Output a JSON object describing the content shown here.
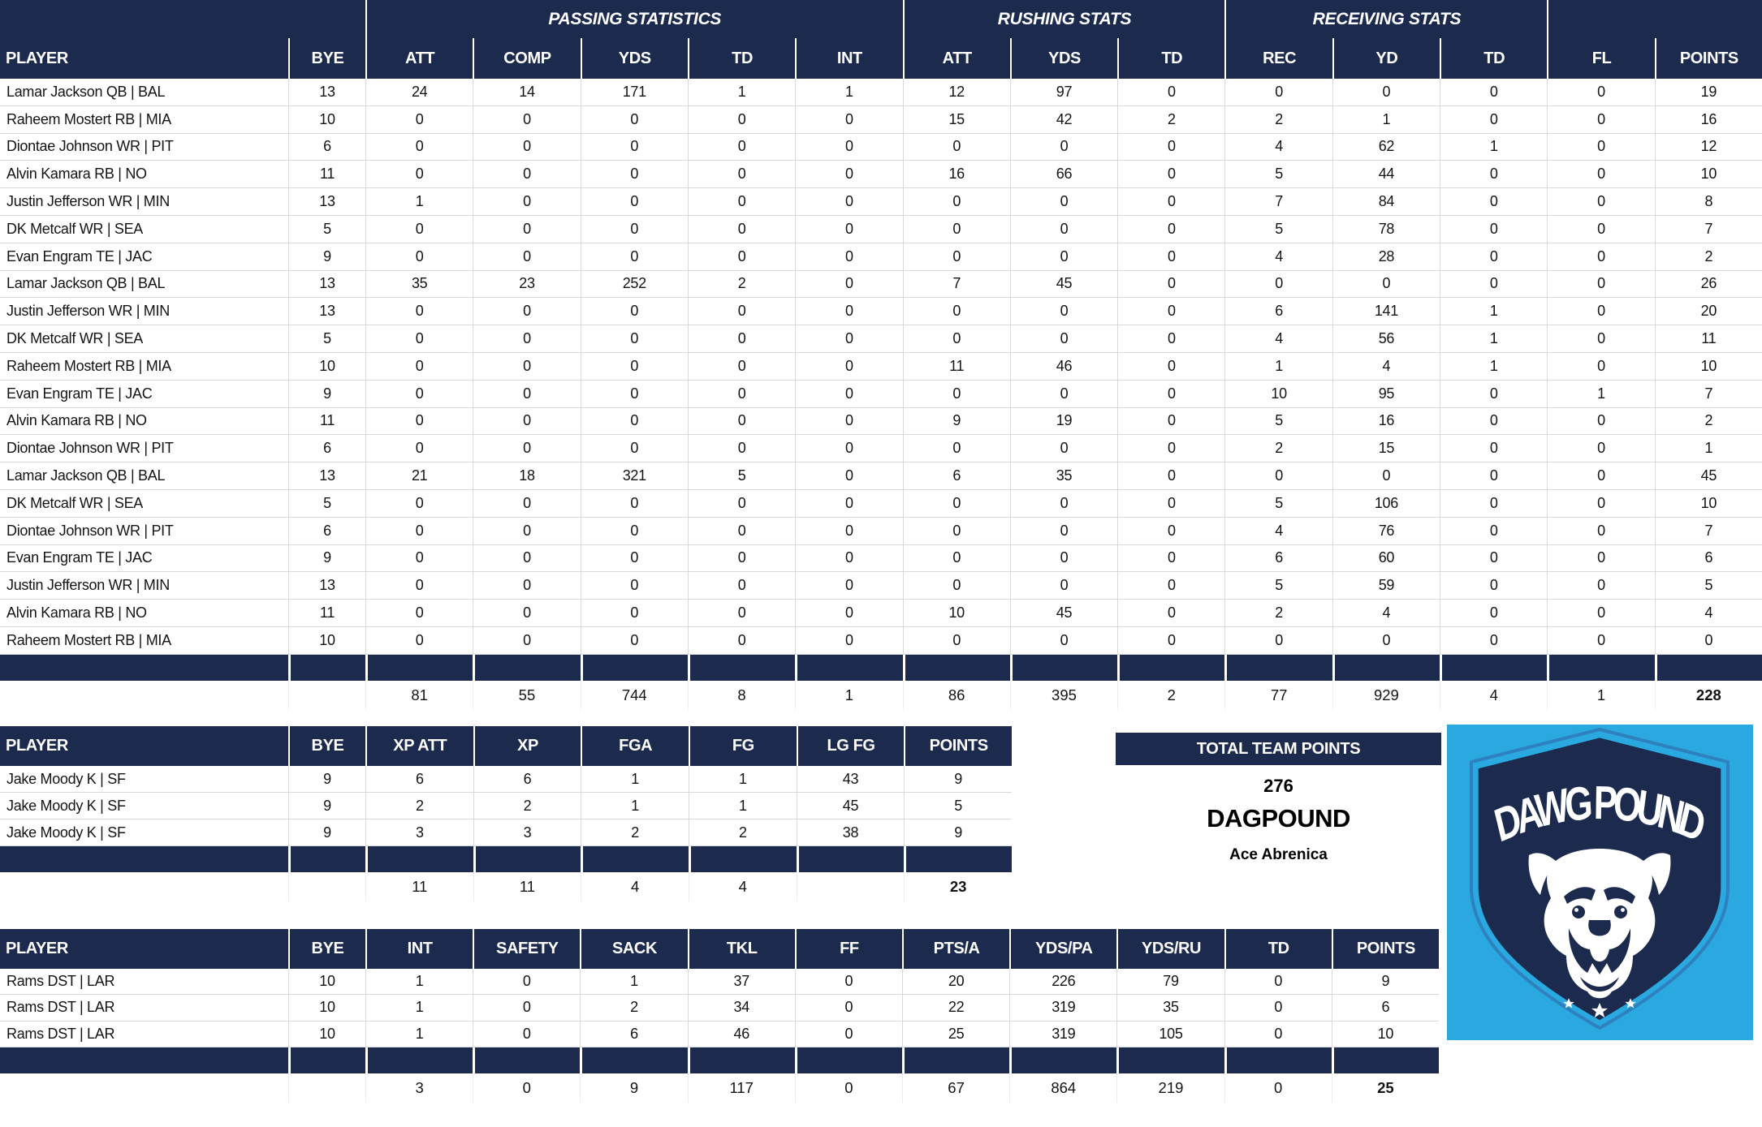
{
  "colors": {
    "navy": "#1b2a4d",
    "gridline": "#d9d9d9",
    "logo_background": "#29a9e0",
    "shield_outline": "#2f80bf",
    "text": "#141414"
  },
  "main_table": {
    "group_headers": {
      "passing": "PASSING STATISTICS",
      "rushing": "RUSHING STATS",
      "receiving": "RECEIVING STATS"
    },
    "columns": [
      "PLAYER",
      "BYE",
      "ATT",
      "COMP",
      "YDS",
      "TD",
      "INT",
      "ATT",
      "YDS",
      "TD",
      "REC",
      "YD",
      "TD",
      "FL",
      "POINTS"
    ],
    "rows": [
      [
        "Lamar Jackson QB | BAL",
        "13",
        "24",
        "14",
        "171",
        "1",
        "1",
        "12",
        "97",
        "0",
        "0",
        "0",
        "0",
        "0",
        "19"
      ],
      [
        "Raheem Mostert RB | MIA",
        "10",
        "0",
        "0",
        "0",
        "0",
        "0",
        "15",
        "42",
        "2",
        "2",
        "1",
        "0",
        "0",
        "16"
      ],
      [
        "Diontae Johnson WR | PIT",
        "6",
        "0",
        "0",
        "0",
        "0",
        "0",
        "0",
        "0",
        "0",
        "4",
        "62",
        "1",
        "0",
        "12"
      ],
      [
        "Alvin Kamara RB | NO",
        "11",
        "0",
        "0",
        "0",
        "0",
        "0",
        "16",
        "66",
        "0",
        "5",
        "44",
        "0",
        "0",
        "10"
      ],
      [
        "Justin Jefferson WR | MIN",
        "13",
        "1",
        "0",
        "0",
        "0",
        "0",
        "0",
        "0",
        "0",
        "7",
        "84",
        "0",
        "0",
        "8"
      ],
      [
        "DK Metcalf WR | SEA",
        "5",
        "0",
        "0",
        "0",
        "0",
        "0",
        "0",
        "0",
        "0",
        "5",
        "78",
        "0",
        "0",
        "7"
      ],
      [
        "Evan Engram TE | JAC",
        "9",
        "0",
        "0",
        "0",
        "0",
        "0",
        "0",
        "0",
        "0",
        "4",
        "28",
        "0",
        "0",
        "2"
      ],
      [
        "Lamar Jackson QB | BAL",
        "13",
        "35",
        "23",
        "252",
        "2",
        "0",
        "7",
        "45",
        "0",
        "0",
        "0",
        "0",
        "0",
        "26"
      ],
      [
        "Justin Jefferson WR | MIN",
        "13",
        "0",
        "0",
        "0",
        "0",
        "0",
        "0",
        "0",
        "0",
        "6",
        "141",
        "1",
        "0",
        "20"
      ],
      [
        "DK Metcalf WR | SEA",
        "5",
        "0",
        "0",
        "0",
        "0",
        "0",
        "0",
        "0",
        "0",
        "4",
        "56",
        "1",
        "0",
        "11"
      ],
      [
        "Raheem Mostert RB | MIA",
        "10",
        "0",
        "0",
        "0",
        "0",
        "0",
        "11",
        "46",
        "0",
        "1",
        "4",
        "1",
        "0",
        "10"
      ],
      [
        "Evan Engram TE | JAC",
        "9",
        "0",
        "0",
        "0",
        "0",
        "0",
        "0",
        "0",
        "0",
        "10",
        "95",
        "0",
        "1",
        "7"
      ],
      [
        "Alvin Kamara RB | NO",
        "11",
        "0",
        "0",
        "0",
        "0",
        "0",
        "9",
        "19",
        "0",
        "5",
        "16",
        "0",
        "0",
        "2"
      ],
      [
        "Diontae Johnson WR | PIT",
        "6",
        "0",
        "0",
        "0",
        "0",
        "0",
        "0",
        "0",
        "0",
        "2",
        "15",
        "0",
        "0",
        "1"
      ],
      [
        "Lamar Jackson QB | BAL",
        "13",
        "21",
        "18",
        "321",
        "5",
        "0",
        "6",
        "35",
        "0",
        "0",
        "0",
        "0",
        "0",
        "45"
      ],
      [
        "DK Metcalf WR | SEA",
        "5",
        "0",
        "0",
        "0",
        "0",
        "0",
        "0",
        "0",
        "0",
        "5",
        "106",
        "0",
        "0",
        "10"
      ],
      [
        "Diontae Johnson WR | PIT",
        "6",
        "0",
        "0",
        "0",
        "0",
        "0",
        "0",
        "0",
        "0",
        "4",
        "76",
        "0",
        "0",
        "7"
      ],
      [
        "Evan Engram TE | JAC",
        "9",
        "0",
        "0",
        "0",
        "0",
        "0",
        "0",
        "0",
        "0",
        "6",
        "60",
        "0",
        "0",
        "6"
      ],
      [
        "Justin Jefferson WR | MIN",
        "13",
        "0",
        "0",
        "0",
        "0",
        "0",
        "0",
        "0",
        "0",
        "5",
        "59",
        "0",
        "0",
        "5"
      ],
      [
        "Alvin Kamara RB | NO",
        "11",
        "0",
        "0",
        "0",
        "0",
        "0",
        "10",
        "45",
        "0",
        "2",
        "4",
        "0",
        "0",
        "4"
      ],
      [
        "Raheem Mostert RB | MIA",
        "10",
        "0",
        "0",
        "0",
        "0",
        "0",
        "0",
        "0",
        "0",
        "0",
        "0",
        "0",
        "0",
        "0"
      ]
    ],
    "totals": [
      "",
      "",
      "81",
      "55",
      "744",
      "8",
      "1",
      "86",
      "395",
      "2",
      "77",
      "929",
      "4",
      "1",
      "228"
    ]
  },
  "kicker_table": {
    "columns": [
      "PLAYER",
      "BYE",
      "XP ATT",
      "XP",
      "FGA",
      "FG",
      "LG FG",
      "POINTS"
    ],
    "rows": [
      [
        "Jake Moody K | SF",
        "9",
        "6",
        "6",
        "1",
        "1",
        "43",
        "9"
      ],
      [
        "Jake Moody K | SF",
        "9",
        "2",
        "2",
        "1",
        "1",
        "45",
        "5"
      ],
      [
        "Jake Moody K | SF",
        "9",
        "3",
        "3",
        "2",
        "2",
        "38",
        "9"
      ]
    ],
    "totals": [
      "",
      "",
      "11",
      "11",
      "4",
      "4",
      "",
      "23"
    ]
  },
  "dst_table": {
    "columns": [
      "PLAYER",
      "BYE",
      "INT",
      "SAFETY",
      "SACK",
      "TKL",
      "FF",
      "PTS/A",
      "YDS/PA",
      "YDS/RU",
      "TD",
      "POINTS"
    ],
    "rows": [
      [
        "Rams DST | LAR",
        "10",
        "1",
        "0",
        "1",
        "37",
        "0",
        "20",
        "226",
        "79",
        "0",
        "9"
      ],
      [
        "Rams DST | LAR",
        "10",
        "1",
        "0",
        "2",
        "34",
        "0",
        "22",
        "319",
        "35",
        "0",
        "6"
      ],
      [
        "Rams DST | LAR",
        "10",
        "1",
        "0",
        "6",
        "46",
        "0",
        "25",
        "319",
        "105",
        "0",
        "10"
      ]
    ],
    "totals": [
      "",
      "",
      "3",
      "0",
      "9",
      "117",
      "0",
      "67",
      "864",
      "219",
      "0",
      "25"
    ]
  },
  "team_summary": {
    "header": "TOTAL TEAM POINTS",
    "points": "276",
    "team_name": "DAGPOUND",
    "owner": "Ace Abrenica"
  },
  "logo": {
    "text": "DAWG POUND"
  }
}
